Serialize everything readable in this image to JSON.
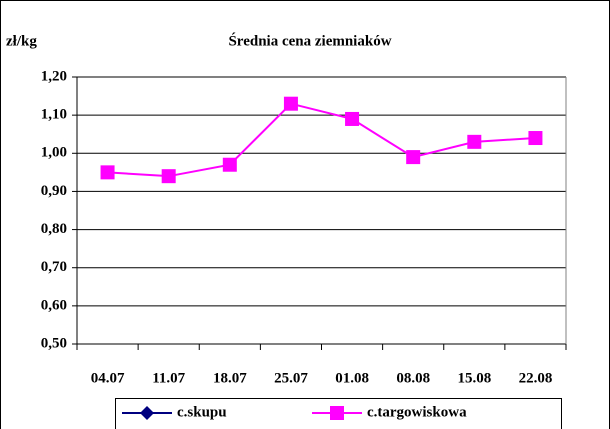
{
  "chart_data": {
    "type": "line",
    "title": "Średnia cena ziemniaków",
    "y_label": "zł/kg",
    "categories": [
      "04.07",
      "11.07",
      "18.07",
      "25.07",
      "01.08",
      "08.08",
      "15.08",
      "22.08"
    ],
    "series": [
      {
        "name": "c.skupu",
        "color": "#000080",
        "marker": "diamond",
        "values": [
          null,
          null,
          null,
          null,
          null,
          null,
          null,
          null
        ]
      },
      {
        "name": "c.targowiskowa",
        "color": "#ff00ff",
        "marker": "square",
        "values": [
          0.95,
          0.94,
          0.97,
          1.13,
          1.09,
          0.99,
          1.03,
          1.04
        ]
      }
    ],
    "ylim": [
      0.5,
      1.2
    ],
    "yticks": [
      {
        "value": 0.5,
        "label": "0,50"
      },
      {
        "value": 0.6,
        "label": "0,60"
      },
      {
        "value": 0.7,
        "label": "0,70"
      },
      {
        "value": 0.8,
        "label": "0,80"
      },
      {
        "value": 0.9,
        "label": "0,90"
      },
      {
        "value": 1.0,
        "label": "1,00"
      },
      {
        "value": 1.1,
        "label": "1,10"
      },
      {
        "value": 1.2,
        "label": "1,20"
      }
    ],
    "grid": true,
    "legend": "bottom"
  }
}
